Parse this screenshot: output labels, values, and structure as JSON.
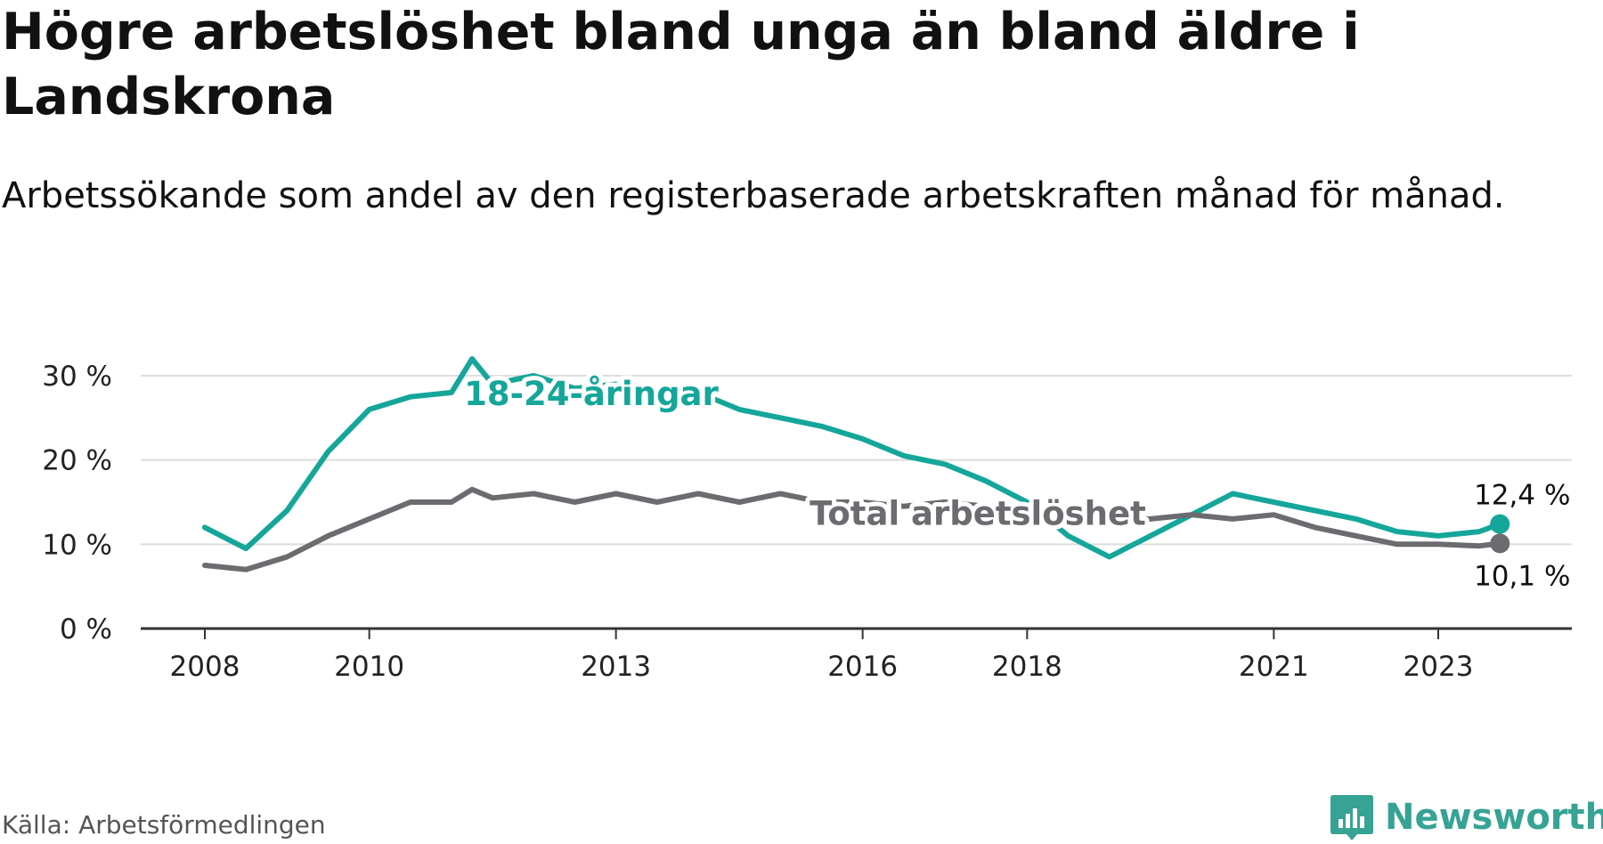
{
  "title": "Högre arbetslöshet bland unga än bland äldre i Landskrona",
  "subtitle": "Arbetssökande som andel av den registerbaserade arbetskraften månad för månad.",
  "source": "Källa: Arbetsförmedlingen",
  "brand": {
    "name": "Newsworthy",
    "icon": "newsworthy-logo-icon"
  },
  "colors": {
    "youth": "#15a69a",
    "total": "#6b6b70",
    "grid": "#dddddd",
    "axis": "#333333"
  },
  "chart_data": {
    "type": "line",
    "title": "Högre arbetslöshet bland unga än bland äldre i Landskrona",
    "xlabel": "",
    "ylabel": "",
    "xlim": [
      2008,
      2024.6
    ],
    "ylim": [
      0,
      30
    ],
    "yticks": [
      0,
      10,
      20,
      30
    ],
    "ytick_labels": [
      "0 %",
      "10 %",
      "20 %",
      "30 %"
    ],
    "xticks": [
      2008,
      2010,
      2013,
      2016,
      2018,
      2021,
      2023
    ],
    "xtick_labels": [
      "2008",
      "2010",
      "2013",
      "2016",
      "2018",
      "2021",
      "2023"
    ],
    "grid": true,
    "series": [
      {
        "name": "18-24-åringar",
        "color": "#15a69a",
        "end_label": "12,4 %",
        "x": [
          2008.0,
          2008.5,
          2009.0,
          2009.5,
          2010.0,
          2010.5,
          2011.0,
          2011.25,
          2011.5,
          2012.0,
          2012.5,
          2013.0,
          2013.5,
          2014.0,
          2014.5,
          2015.0,
          2015.5,
          2016.0,
          2016.5,
          2017.0,
          2017.5,
          2018.0,
          2018.5,
          2019.0,
          2019.5,
          2020.0,
          2020.5,
          2021.0,
          2021.5,
          2022.0,
          2022.5,
          2023.0,
          2023.5,
          2023.75
        ],
        "values": [
          12.0,
          9.5,
          14.0,
          21.0,
          26.0,
          27.5,
          28.0,
          32.0,
          29.0,
          30.0,
          28.5,
          29.0,
          27.5,
          28.0,
          26.0,
          25.0,
          24.0,
          22.5,
          20.5,
          19.5,
          17.5,
          15.0,
          11.0,
          8.5,
          11.0,
          13.5,
          16.0,
          15.0,
          14.0,
          13.0,
          11.5,
          11.0,
          11.5,
          12.4
        ]
      },
      {
        "name": "Total arbetslöshet",
        "color": "#6b6b70",
        "end_label": "10,1 %",
        "x": [
          2008.0,
          2008.5,
          2009.0,
          2009.5,
          2010.0,
          2010.5,
          2011.0,
          2011.25,
          2011.5,
          2012.0,
          2012.5,
          2013.0,
          2013.5,
          2014.0,
          2014.5,
          2015.0,
          2015.5,
          2016.0,
          2016.5,
          2017.0,
          2017.5,
          2018.0,
          2018.5,
          2019.0,
          2019.5,
          2020.0,
          2020.5,
          2021.0,
          2021.5,
          2022.0,
          2022.5,
          2023.0,
          2023.5,
          2023.75
        ],
        "values": [
          7.5,
          7.0,
          8.5,
          11.0,
          13.0,
          15.0,
          15.0,
          16.5,
          15.5,
          16.0,
          15.0,
          16.0,
          15.0,
          16.0,
          15.0,
          16.0,
          15.0,
          15.0,
          14.5,
          15.0,
          14.5,
          14.0,
          13.5,
          13.0,
          13.0,
          13.5,
          13.0,
          13.5,
          12.0,
          11.0,
          10.0,
          10.0,
          9.8,
          10.1
        ]
      }
    ],
    "annotations": [
      {
        "text": "18-24-åringar",
        "series": "18-24-åringar",
        "x": 2012.7,
        "y": 26.5
      },
      {
        "text": "Total arbetslöshet",
        "series": "Total arbetslöshet",
        "x": 2017.4,
        "y": 12.3
      }
    ]
  }
}
